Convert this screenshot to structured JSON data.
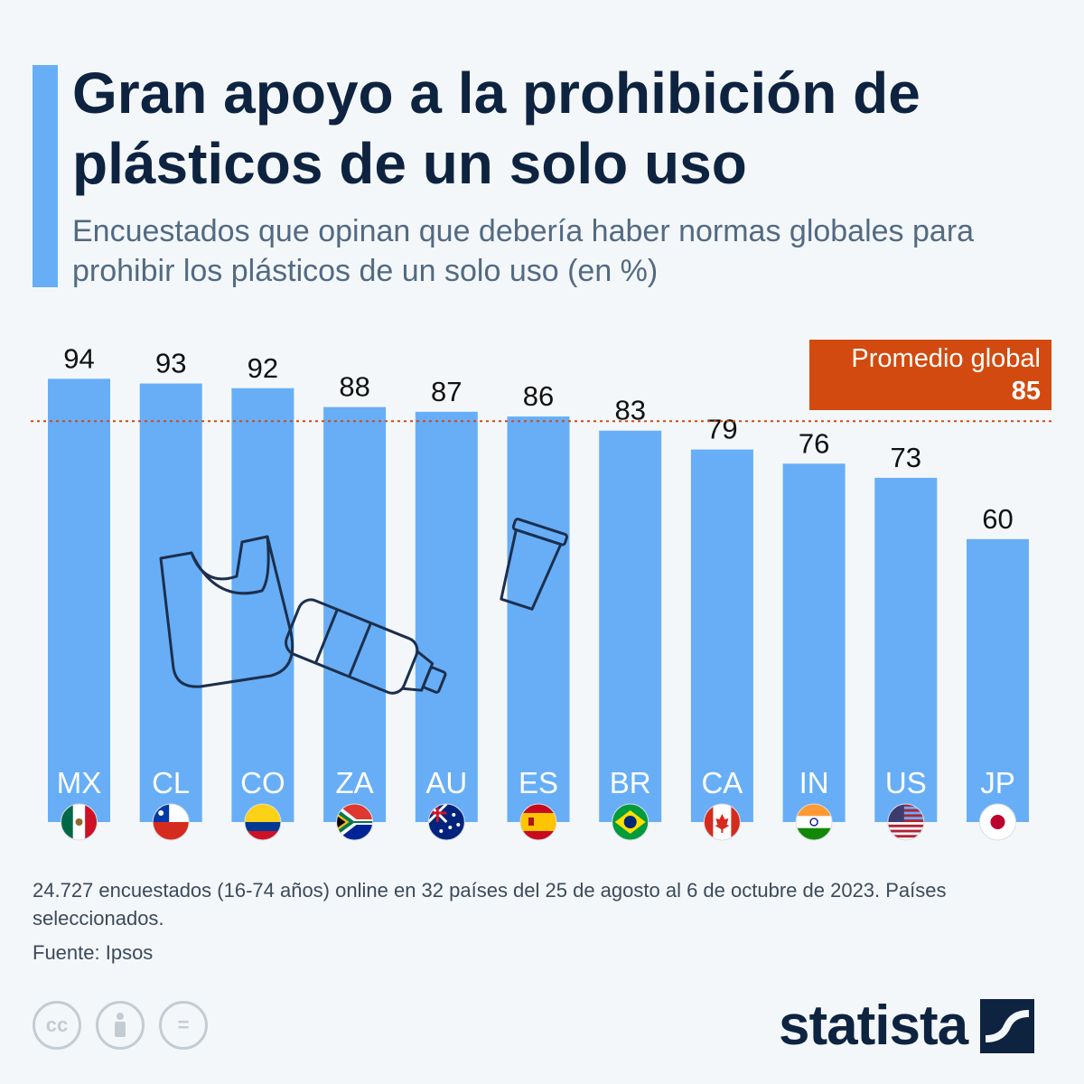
{
  "title": "Gran apoyo a la prohibición de plásticos de un solo uso",
  "subtitle": "Encuestados que opinan que debería haber normas globales para prohibir los plásticos de un solo uso (en %)",
  "average": {
    "label": "Promedio global",
    "value": "85"
  },
  "footnote": "24.727 encuestados (16-74 años) online en 32 países del 25 de agosto al 6 de octubre de 2023. Países seleccionados.",
  "source": "Fuente: Ipsos",
  "logo": "statista",
  "license_icons": [
    "cc-icon",
    "attribution-icon",
    "no-derivatives-icon"
  ],
  "colors": {
    "bar": "#67aef7",
    "average": "#d24a10",
    "title": "#0d2340",
    "accent": "#67aef7"
  },
  "chart_data": {
    "type": "bar",
    "categories": [
      "MX",
      "CL",
      "CO",
      "ZA",
      "AU",
      "ES",
      "BR",
      "CA",
      "IN",
      "US",
      "JP"
    ],
    "values": [
      94,
      93,
      92,
      88,
      87,
      86,
      83,
      79,
      76,
      73,
      60
    ],
    "flags": [
      "mexico-flag-icon",
      "chile-flag-icon",
      "colombia-flag-icon",
      "south-africa-flag-icon",
      "australia-flag-icon",
      "spain-flag-icon",
      "brazil-flag-icon",
      "canada-flag-icon",
      "india-flag-icon",
      "usa-flag-icon",
      "japan-flag-icon"
    ],
    "reference_line": {
      "label": "Promedio global",
      "value": 85,
      "style": "dotted"
    },
    "ylim": [
      0,
      100
    ],
    "grid": false,
    "data_labels": true
  }
}
